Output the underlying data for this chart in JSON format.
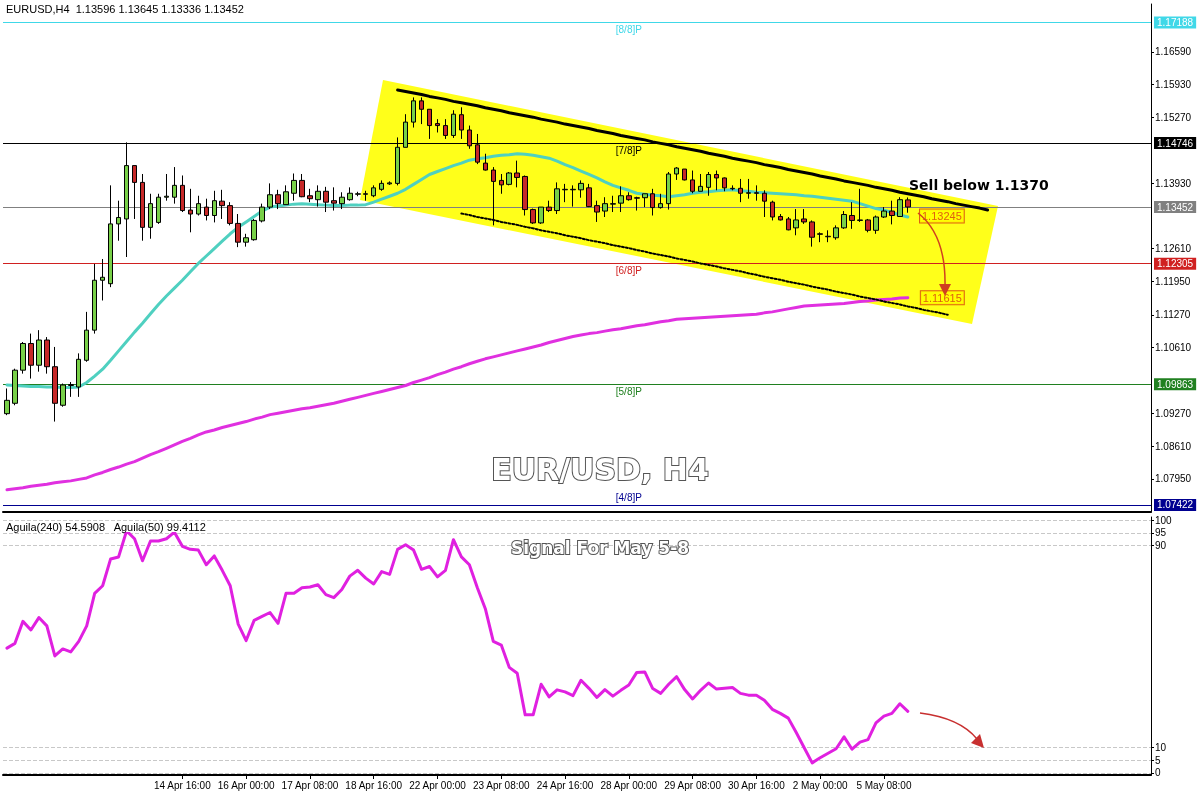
{
  "chart_data": [
    {
      "type": "candlestick",
      "title": "EURUSD,H4  1.13596 1.13645 1.13336 1.13452",
      "categories": [
        null,
        null,
        null,
        null,
        null,
        null,
        null,
        null,
        null,
        null,
        null,
        null,
        null,
        null,
        null,
        null,
        null,
        null,
        null,
        null,
        null,
        null,
        null,
        null,
        null,
        null,
        null,
        null,
        null,
        null,
        null,
        null,
        null,
        null,
        null,
        null,
        null,
        null,
        null,
        null,
        null,
        null,
        null,
        null,
        null,
        null,
        null,
        null,
        null,
        null,
        null,
        null,
        null,
        null,
        null,
        null,
        null,
        null,
        null,
        null,
        null,
        null,
        null,
        null,
        null,
        null,
        null,
        null,
        null,
        null,
        null,
        null,
        null,
        null,
        null,
        null,
        null,
        null,
        null,
        null,
        null,
        null,
        null,
        null,
        null,
        null,
        null,
        null,
        null,
        null,
        null,
        null,
        null,
        null,
        null,
        null,
        null,
        null,
        null,
        null,
        null,
        null,
        null,
        null,
        null,
        null,
        null,
        null,
        null,
        null,
        null,
        null,
        null,
        null,
        null,
        null,
        null,
        null,
        null,
        null,
        null,
        null,
        null,
        null,
        null,
        null,
        null,
        null,
        null,
        null,
        null,
        null,
        null,
        null,
        null,
        null,
        null,
        null,
        null,
        null,
        null,
        null,
        null,
        null
      ],
      "ylim": [
        1.0728,
        1.1756
      ],
      "yticks": [
        {
          "value": 1.1659,
          "label": "1.16590"
        },
        {
          "value": 1.1593,
          "label": "1.15930"
        },
        {
          "value": 1.1527,
          "label": "1.15270"
        },
        {
          "value": 1.1393,
          "label": "1.13930"
        },
        {
          "value": 1.1261,
          "label": "1.12610"
        },
        {
          "value": 1.1195,
          "label": "1.11950"
        },
        {
          "value": 1.1127,
          "label": "1.11270"
        },
        {
          "value": 1.1061,
          "label": "1.10610"
        },
        {
          "value": 1.0927,
          "label": "1.09270"
        },
        {
          "value": 1.0861,
          "label": "1.08610"
        },
        {
          "value": 1.0795,
          "label": "1.07950"
        }
      ],
      "tick_labels": "y",
      "marker": "none",
      "series": [
        {
          "ohlc": [
            [
              1.0927,
              1.0978,
              1.0924,
              1.0954
            ],
            [
              1.0948,
              1.1018,
              1.0944,
              1.1015
            ],
            [
              1.1015,
              1.1072,
              1.1008,
              1.1069
            ],
            [
              1.1069,
              1.1089,
              1.0998,
              1.1025
            ],
            [
              1.1025,
              1.1096,
              1.1012,
              1.1076
            ],
            [
              1.1076,
              1.1082,
              1.1008,
              1.1022
            ],
            [
              1.1022,
              1.1062,
              1.0911,
              1.0948
            ],
            [
              1.0944,
              1.0988,
              1.0941,
              1.0985
            ],
            [
              1.0984,
              1.0991,
              1.0961,
              1.0986
            ],
            [
              1.0981,
              1.1049,
              1.0961,
              1.1037
            ],
            [
              1.1035,
              1.1133,
              1.1032,
              1.1096
            ],
            [
              1.1096,
              1.123,
              1.1089,
              1.1197
            ],
            [
              1.1197,
              1.124,
              1.1156,
              1.1203
            ],
            [
              1.119,
              1.1389,
              1.1183,
              1.1311
            ],
            [
              1.1311,
              1.1358,
              1.1277,
              1.1324
            ],
            [
              1.1321,
              1.1476,
              1.1244,
              1.1429
            ],
            [
              1.1429,
              1.1429,
              1.1321,
              1.1395
            ],
            [
              1.1395,
              1.1412,
              1.1277,
              1.1304
            ],
            [
              1.1304,
              1.1372,
              1.1281,
              1.1352
            ],
            [
              1.1314,
              1.1372,
              1.1311,
              1.1365
            ],
            [
              1.1365,
              1.1412,
              1.1358,
              1.1367
            ],
            [
              1.1365,
              1.1426,
              1.1352,
              1.1389
            ],
            [
              1.1389,
              1.1409,
              1.1335,
              1.1338
            ],
            [
              1.1339,
              1.1382,
              1.1294,
              1.1331
            ],
            [
              1.1331,
              1.1368,
              1.1328,
              1.1352
            ],
            [
              1.1345,
              1.1362,
              1.1318,
              1.1328
            ],
            [
              1.1328,
              1.1378,
              1.1314,
              1.1358
            ],
            [
              1.1357,
              1.138,
              1.1321,
              1.1348
            ],
            [
              1.1348,
              1.1355,
              1.1308,
              1.1312
            ],
            [
              1.1312,
              1.1331,
              1.1264,
              1.1274
            ],
            [
              1.1274,
              1.1291,
              1.1265,
              1.1283
            ],
            [
              1.1279,
              1.1321,
              1.1277,
              1.1318
            ],
            [
              1.1317,
              1.1352,
              1.1314,
              1.1345
            ],
            [
              1.1345,
              1.1393,
              1.1341,
              1.137
            ],
            [
              1.137,
              1.138,
              1.1341,
              1.1352
            ],
            [
              1.135,
              1.1389,
              1.135,
              1.1376
            ],
            [
              1.1373,
              1.1413,
              1.1358,
              1.1399
            ],
            [
              1.1399,
              1.1412,
              1.1365,
              1.1366
            ],
            [
              1.1368,
              1.1382,
              1.1355,
              1.1362
            ],
            [
              1.136,
              1.1389,
              1.1346,
              1.1377
            ],
            [
              1.1377,
              1.1386,
              1.1335,
              1.1355
            ],
            [
              1.1358,
              1.1385,
              1.1338,
              1.1353
            ],
            [
              1.1352,
              1.1375,
              1.1341,
              1.1365
            ],
            [
              1.136,
              1.1385,
              1.1358,
              1.1373
            ],
            [
              1.1371,
              1.1376,
              1.1367,
              1.1372
            ],
            [
              1.1371,
              1.1378,
              1.1358,
              1.1372
            ],
            [
              1.1368,
              1.1389,
              1.1365,
              1.1384
            ],
            [
              1.1381,
              1.1399,
              1.1378,
              1.1393
            ],
            [
              1.1392,
              1.1397,
              1.139,
              1.1394
            ],
            [
              1.1393,
              1.1486,
              1.1389,
              1.1466
            ],
            [
              1.1466,
              1.1533,
              1.1466,
              1.1517
            ],
            [
              1.1517,
              1.1567,
              1.1506,
              1.156
            ],
            [
              1.156,
              1.1567,
              1.1513,
              1.1543
            ],
            [
              1.1543,
              1.1543,
              1.1483,
              1.151
            ],
            [
              1.1514,
              1.1523,
              1.1496,
              1.151
            ],
            [
              1.151,
              1.1523,
              1.1483,
              1.149
            ],
            [
              1.149,
              1.1541,
              1.1485,
              1.1533
            ],
            [
              1.1532,
              1.1547,
              1.1483,
              1.1501
            ],
            [
              1.1501,
              1.151,
              1.1463,
              1.1469
            ],
            [
              1.1471,
              1.1493,
              1.1432,
              1.1436
            ],
            [
              1.1434,
              1.1453,
              1.1419,
              1.142
            ],
            [
              1.142,
              1.1426,
              1.1308,
              1.1397
            ],
            [
              1.1399,
              1.1412,
              1.1372,
              1.139
            ],
            [
              1.1391,
              1.1416,
              1.1389,
              1.1414
            ],
            [
              1.1414,
              1.1439,
              1.1385,
              1.1405
            ],
            [
              1.1407,
              1.1409,
              1.1328,
              1.134
            ],
            [
              1.134,
              1.1342,
              1.1311,
              1.1313
            ],
            [
              1.1313,
              1.1345,
              1.1311,
              1.1345
            ],
            [
              1.1345,
              1.1358,
              1.1335,
              1.1338
            ],
            [
              1.1338,
              1.1395,
              1.1331,
              1.1382
            ],
            [
              1.1381,
              1.1392,
              1.1355,
              1.138
            ],
            [
              1.138,
              1.1389,
              1.1346,
              1.1381
            ],
            [
              1.138,
              1.1399,
              1.1364,
              1.1393
            ],
            [
              1.1384,
              1.1392,
              1.1345,
              1.1346
            ],
            [
              1.1348,
              1.1358,
              1.1315,
              1.1335
            ],
            [
              1.1337,
              1.1365,
              1.1325,
              1.1352
            ],
            [
              1.1351,
              1.1368,
              1.1335,
              1.1352
            ],
            [
              1.1353,
              1.1387,
              1.1335,
              1.1368
            ],
            [
              1.1368,
              1.1375,
              1.1358,
              1.136
            ],
            [
              1.1364,
              1.1366,
              1.1338,
              1.1363
            ],
            [
              1.1364,
              1.1372,
              1.1345,
              1.1372
            ],
            [
              1.1372,
              1.1382,
              1.1328,
              1.1344
            ],
            [
              1.1344,
              1.1372,
              1.1342,
              1.1352
            ],
            [
              1.1352,
              1.1416,
              1.134,
              1.1412
            ],
            [
              1.1412,
              1.1426,
              1.14,
              1.1424
            ],
            [
              1.1422,
              1.1422,
              1.1399,
              1.14
            ],
            [
              1.14,
              1.1419,
              1.1373,
              1.1377
            ],
            [
              1.1377,
              1.1412,
              1.1377,
              1.1387
            ],
            [
              1.1385,
              1.1416,
              1.1368,
              1.1411
            ],
            [
              1.1411,
              1.1419,
              1.1379,
              1.1404
            ],
            [
              1.1404,
              1.1405,
              1.1377,
              1.1384
            ],
            [
              1.1382,
              1.1389,
              1.1379,
              1.1383
            ],
            [
              1.1383,
              1.1402,
              1.1355,
              1.1373
            ],
            [
              1.1373,
              1.1402,
              1.1362,
              1.1374
            ],
            [
              1.1374,
              1.1389,
              1.1358,
              1.1373
            ],
            [
              1.1373,
              1.1379,
              1.1325,
              1.1357
            ],
            [
              1.1355,
              1.1358,
              1.1318,
              1.1325
            ],
            [
              1.1326,
              1.1331,
              1.1318,
              1.1319
            ],
            [
              1.1321,
              1.1325,
              1.1298,
              1.1299
            ],
            [
              1.1303,
              1.1341,
              1.1288,
              1.1319
            ],
            [
              1.1321,
              1.1341,
              1.1311,
              1.1315
            ],
            [
              1.1315,
              1.1318,
              1.1265,
              1.1284
            ],
            [
              1.1291,
              1.1294,
              1.1274,
              1.129
            ],
            [
              1.1285,
              1.1298,
              1.1274,
              1.1286
            ],
            [
              1.1283,
              1.1308,
              1.1279,
              1.1303
            ],
            [
              1.1303,
              1.1337,
              1.1301,
              1.133
            ],
            [
              1.1328,
              1.1355,
              1.1301,
              1.1318
            ],
            [
              1.1318,
              1.1382,
              1.1315,
              1.1319
            ],
            [
              1.1319,
              1.1321,
              1.1294,
              1.1298
            ],
            [
              1.1298,
              1.1328,
              1.1291,
              1.1325
            ],
            [
              1.1325,
              1.1345,
              1.1323,
              1.1337
            ],
            [
              1.1337,
              1.1358,
              1.131,
              1.1328
            ],
            [
              1.1326,
              1.1365,
              1.1325,
              1.136
            ],
            [
              1.13596,
              1.13645,
              1.13336,
              1.13452
            ],
            null,
            null,
            null,
            null,
            null,
            null,
            null,
            null,
            null,
            null,
            null,
            null,
            null,
            null,
            null,
            null,
            null,
            null,
            null,
            null,
            null,
            null,
            null,
            null,
            null,
            null,
            null,
            null,
            null,
            null
          ],
          "colors": [
            "#78d048",
            "#78d048",
            "#78d048",
            "#c62828",
            "#78d048",
            "#c62828",
            "#c62828",
            "#78d048",
            "#78d048",
            "#78d048",
            "#78d048",
            "#78d048",
            "#78d048",
            "#78d048",
            "#78d048",
            "#78d048",
            "#c62828",
            "#c62828",
            "#78d048",
            "#78d048",
            "#78d048",
            "#78d048",
            "#c62828",
            "#c62828",
            "#78d048",
            "#c62828",
            "#78d048",
            "#c62828",
            "#c62828",
            "#c62828",
            "#78d048",
            "#78d048",
            "#78d048",
            "#78d048",
            "#c62828",
            "#78d048",
            "#78d048",
            "#c62828",
            "#c62828",
            "#78d048",
            "#c62828",
            "#c62828",
            "#78d048",
            "#78d048",
            "#78d048",
            "#78d048",
            "#78d048",
            "#78d048",
            "#78d048",
            "#78d048",
            "#78d048",
            "#78d048",
            "#c62828",
            "#c62828",
            "#c62828",
            "#c62828",
            "#78d048",
            "#c62828",
            "#c62828",
            "#c62828",
            "#c62828",
            "#c62828",
            "#c62828",
            "#78d048",
            "#c62828",
            "#c62828",
            "#c62828",
            "#78d048",
            "#c62828",
            "#78d048",
            "#c62828",
            "#78d048",
            "#78d048",
            "#c62828",
            "#c62828",
            "#78d048",
            "#78d048",
            "#78d048",
            "#c62828",
            "#c62828",
            "#78d048",
            "#c62828",
            "#78d048",
            "#78d048",
            "#78d048",
            "#c62828",
            "#c62828",
            "#78d048",
            "#78d048",
            "#c62828",
            "#c62828",
            "#78d048",
            "#c62828",
            "#78d048",
            "#c62828",
            "#c62828",
            "#c62828",
            "#c62828",
            "#c62828",
            "#78d048",
            "#c62828",
            "#c62828",
            "#c62828",
            "#78d048",
            "#78d048",
            "#78d048",
            "#c62828",
            "#78d048",
            "#c62828",
            "#78d048",
            "#78d048",
            "#c62828",
            "#78d048",
            "#c62828",
            null,
            null,
            null,
            null,
            null,
            null,
            null,
            null,
            null,
            null,
            null,
            null,
            null,
            null,
            null,
            null,
            null,
            null,
            null,
            null,
            null,
            null,
            null,
            null,
            null,
            null,
            null,
            null,
            null,
            null
          ]
        },
        {
          "type": "line",
          "color": "#4fd0c0",
          "values": [
            1.0985,
            1.0984,
            1.0983,
            1.0982,
            1.0982,
            1.0981,
            1.0981,
            1.098,
            1.098,
            1.0981,
            1.099,
            1.1003,
            1.1017,
            1.1035,
            1.1054,
            1.1073,
            1.1092,
            1.111,
            1.1129,
            1.1148,
            1.1165,
            1.1181,
            1.1197,
            1.1214,
            1.1231,
            1.1246,
            1.1261,
            1.1276,
            1.1291,
            1.1304,
            1.1315,
            1.1326,
            1.1337,
            1.1345,
            1.1347,
            1.1349,
            1.1351,
            1.1352,
            1.1351,
            1.135,
            1.1349,
            1.1348,
            1.1348,
            1.1349,
            1.1349,
            1.135,
            1.1355,
            1.1361,
            1.1367,
            1.1373,
            1.1381,
            1.1391,
            1.1401,
            1.1411,
            1.1417,
            1.1423,
            1.1429,
            1.1434,
            1.144,
            1.1443,
            1.1445,
            1.1448,
            1.145,
            1.1451,
            1.1453,
            1.1452,
            1.145,
            1.1447,
            1.1444,
            1.1438,
            1.1431,
            1.1425,
            1.1418,
            1.1411,
            1.1404,
            1.1396,
            1.1389,
            1.1384,
            1.1379,
            1.1373,
            1.1371,
            1.1369,
            1.1368,
            1.1366,
            1.1368,
            1.137,
            1.1373,
            1.1375,
            1.1376,
            1.1378,
            1.1379,
            1.138,
            1.1378,
            1.1377,
            1.1375,
            1.1374,
            1.1373,
            1.1372,
            1.1371,
            1.137,
            1.1368,
            1.1367,
            1.1365,
            1.1363,
            1.1361,
            1.1359,
            1.1357,
            1.1352,
            1.1347,
            1.1342,
            1.1339,
            1.1334,
            1.1329,
            1.1325,
            null,
            null,
            null,
            null,
            null,
            null,
            null,
            null,
            null,
            null,
            null,
            null,
            null,
            null,
            null,
            null,
            null,
            null,
            null,
            null,
            null,
            null,
            null,
            null,
            null,
            null,
            null,
            null,
            null,
            null
          ]
        },
        {
          "type": "line",
          "color": "#e030e0",
          "values": [
            1.0773,
            1.0775,
            1.0777,
            1.078,
            1.0782,
            1.0784,
            1.0787,
            1.0789,
            1.0791,
            1.0794,
            1.0797,
            1.0803,
            1.0808,
            1.0814,
            1.0819,
            1.0825,
            1.083,
            1.0837,
            1.0844,
            1.085,
            1.0857,
            1.0864,
            1.0871,
            1.0877,
            1.0884,
            1.089,
            1.0894,
            1.0899,
            1.0903,
            1.0907,
            1.0911,
            1.0916,
            1.092,
            1.0925,
            1.0928,
            1.0931,
            1.0934,
            1.0937,
            1.0939,
            1.0942,
            1.0945,
            1.0948,
            1.0952,
            1.0956,
            1.096,
            1.0964,
            1.0968,
            1.0972,
            1.0976,
            1.098,
            1.0984,
            1.099,
            1.0995,
            1.1,
            1.1006,
            1.1011,
            1.1017,
            1.1022,
            1.1028,
            1.1033,
            1.1038,
            1.1042,
            1.1046,
            1.105,
            1.1054,
            1.1058,
            1.1062,
            1.1066,
            1.1071,
            1.1075,
            1.1079,
            1.1083,
            1.1086,
            1.1089,
            1.1091,
            1.1094,
            1.1097,
            1.1099,
            1.1102,
            1.1105,
            1.1107,
            1.111,
            1.1113,
            1.1115,
            1.1118,
            1.1119,
            1.112,
            1.1121,
            1.1122,
            1.1123,
            1.1124,
            1.1125,
            1.1126,
            1.1127,
            1.1128,
            1.1131,
            1.1133,
            1.1136,
            1.1139,
            1.1142,
            1.1145,
            1.1146,
            1.1147,
            1.1148,
            1.1149,
            1.115,
            1.1152,
            1.1154,
            1.1155,
            1.1157,
            1.1158,
            1.1159,
            1.1161,
            1.11615,
            null,
            null,
            null,
            null,
            null,
            null,
            null,
            null,
            null,
            null,
            null,
            null,
            null,
            null,
            null,
            null,
            null,
            null,
            null,
            null,
            null,
            null,
            null,
            null,
            null,
            null,
            null,
            null,
            null,
            null
          ]
        },
        {
          "type": "line",
          "color": "#000000",
          "line_style": "solid",
          "values": [
            null,
            null,
            null,
            null,
            null,
            null,
            null,
            null,
            null,
            null,
            null,
            null,
            null,
            null,
            null,
            null,
            null,
            null,
            null,
            null,
            null,
            null,
            null,
            null,
            null,
            null,
            null,
            null,
            null,
            null,
            null,
            null,
            null,
            null,
            null,
            null,
            null,
            null,
            null,
            null,
            null,
            null,
            null,
            null,
            null,
            null,
            null,
            null,
            null,
            1.1582,
            1.1579,
            1.1576,
            1.1573,
            1.1569,
            1.1566,
            1.1563,
            1.1559,
            1.1556,
            1.1553,
            1.155,
            1.1546,
            1.1543,
            1.154,
            1.1536,
            1.1533,
            1.153,
            1.1527,
            1.1523,
            1.152,
            1.1517,
            1.1513,
            1.151,
            1.1507,
            1.1504,
            1.15,
            1.1497,
            1.1494,
            1.149,
            1.1487,
            1.1484,
            1.1481,
            1.1477,
            1.1474,
            1.1471,
            1.1467,
            1.1464,
            1.1461,
            1.1458,
            1.1454,
            1.1451,
            1.1448,
            1.1444,
            1.1441,
            1.1438,
            1.1435,
            1.1431,
            1.1428,
            1.1425,
            1.1421,
            1.1418,
            1.1415,
            1.1412,
            1.1408,
            1.1405,
            1.1402,
            1.1398,
            1.1395,
            1.1392,
            1.1389,
            1.1385,
            1.1382,
            1.1379,
            1.1375,
            1.1372,
            1.1369,
            1.1366,
            1.1362,
            1.1359,
            1.1356,
            1.1352,
            1.1349,
            1.1346,
            1.1343,
            1.1339,
            null,
            null,
            null,
            null,
            null,
            null,
            null,
            null,
            null,
            null,
            null,
            null,
            null,
            null,
            null,
            null,
            null,
            null,
            null,
            null
          ]
        },
        {
          "type": "line",
          "color": "#000000",
          "line_style": "dotted",
          "values": [
            null,
            null,
            null,
            null,
            null,
            null,
            null,
            null,
            null,
            null,
            null,
            null,
            null,
            null,
            null,
            null,
            null,
            null,
            null,
            null,
            null,
            null,
            null,
            null,
            null,
            null,
            null,
            null,
            null,
            null,
            null,
            null,
            null,
            null,
            null,
            null,
            null,
            null,
            null,
            null,
            null,
            null,
            null,
            null,
            null,
            null,
            null,
            null,
            null,
            null,
            null,
            null,
            null,
            null,
            null,
            null,
            null,
            1.1332,
            1.1329,
            1.1325,
            1.1322,
            1.1319,
            1.1315,
            1.1312,
            1.1309,
            1.1305,
            1.1302,
            1.1298,
            1.1295,
            1.1292,
            1.1288,
            1.1285,
            1.1282,
            1.1278,
            1.1275,
            1.1272,
            1.1268,
            1.1265,
            1.1262,
            1.1258,
            1.1255,
            1.1251,
            1.1248,
            1.1245,
            1.1241,
            1.1238,
            1.1235,
            1.1231,
            1.1228,
            1.1225,
            1.1221,
            1.1218,
            1.1215,
            1.1211,
            1.1208,
            1.1204,
            1.1201,
            1.1198,
            1.1194,
            1.1191,
            1.1188,
            1.1184,
            1.1181,
            1.1178,
            1.1174,
            1.1171,
            1.1168,
            1.1164,
            1.1161,
            1.1158,
            1.1154,
            1.1151,
            1.1148,
            1.1144,
            1.1141,
            1.1137,
            1.1134,
            1.1131,
            1.1127,
            null,
            null,
            null,
            null,
            null,
            null,
            null,
            null,
            null,
            null,
            null,
            null,
            null,
            null,
            null,
            null,
            null,
            null,
            null,
            null,
            null,
            null,
            null,
            null,
            null
          ]
        }
      ],
      "ref_lines": [
        {
          "axis": "y",
          "value": 1.17188,
          "label": "1.17188",
          "color": "#40d8e8"
        },
        {
          "axis": "y",
          "value": 1.14746,
          "label": "1.14746",
          "color": "#000000"
        },
        {
          "axis": "y",
          "value": 1.13452,
          "label": "1.13452",
          "color": "#808080"
        },
        {
          "axis": "y",
          "value": 1.12305,
          "label": "1.12305",
          "color": "#d02020"
        },
        {
          "axis": "y",
          "value": 1.09863,
          "label": "1.09863",
          "color": "#208020"
        },
        {
          "axis": "y",
          "value": 1.07422,
          "label": "1.07422",
          "color": "#000090"
        }
      ],
      "annotations": [
        "EUR/USD, H4",
        "Sell below 1.1370",
        "1.13245",
        {
          "text": "1.11615",
          "y": 1.11615
        },
        {
          "text": "[8/8]P",
          "y": 1.17188
        },
        {
          "text": "[7/8]P",
          "y": 1.14746
        },
        {
          "text": "[6/8]P",
          "y": 1.12305
        },
        {
          "text": "[5/8]P",
          "y": 1.09863
        },
        {
          "text": "[4/8]P",
          "y": 1.07422
        }
      ]
    },
    {
      "type": "line",
      "title": "Aguila(240) 54.5908   Aguila(50) 99.4112",
      "color": "#e020e0",
      "marker": "none",
      "grid": "y",
      "categories": [
        null,
        null,
        null,
        null,
        null,
        null,
        null,
        null,
        null,
        null,
        null,
        null,
        null,
        null,
        null,
        null,
        null,
        null,
        null,
        null,
        null,
        null,
        "14 Apr 16:00",
        null,
        null,
        null,
        null,
        null,
        null,
        null,
        "16 Apr 00:00",
        null,
        null,
        null,
        null,
        null,
        null,
        null,
        "17 Apr 08:00",
        null,
        null,
        null,
        null,
        null,
        null,
        null,
        "18 Apr 16:00",
        null,
        null,
        null,
        null,
        null,
        null,
        null,
        "22 Apr 00:00",
        null,
        null,
        null,
        null,
        null,
        null,
        null,
        "23 Apr 08:00",
        null,
        null,
        null,
        null,
        null,
        null,
        null,
        "24 Apr 16:00",
        null,
        null,
        null,
        null,
        null,
        null,
        null,
        "28 Apr 00:00",
        null,
        null,
        null,
        null,
        null,
        null,
        null,
        "29 Apr 08:00",
        null,
        null,
        null,
        null,
        null,
        null,
        null,
        "30 Apr 16:00",
        null,
        null,
        null,
        null,
        null,
        null,
        null,
        "2 May 00:00",
        null,
        null,
        null,
        null,
        null,
        null,
        null,
        "5 May 08:00",
        null,
        null,
        null,
        null,
        null,
        null,
        null,
        null,
        null,
        null,
        null,
        null,
        null,
        null,
        null,
        null,
        null,
        null,
        null,
        null,
        null,
        null,
        null,
        null,
        null,
        null,
        null,
        null,
        null,
        null,
        null,
        null,
        null
      ],
      "ylim": [
        -0.8,
        101.3
      ],
      "yticks": [
        0,
        5,
        10,
        90,
        95,
        100
      ],
      "values": [
        49.4,
        51.3,
        60,
        56.6,
        61.5,
        58.2,
        46.3,
        49.1,
        47.9,
        52.1,
        58.2,
        71.1,
        74.1,
        84.7,
        85.5,
        95.8,
        92.7,
        84,
        91.8,
        91.8,
        92.7,
        95.3,
        89.7,
        88.5,
        88.2,
        82.4,
        85.9,
        80.2,
        74.1,
        58.9,
        52.4,
        60.4,
        62,
        63.5,
        59.2,
        71.1,
        71.1,
        73.3,
        73.6,
        74.5,
        70.6,
        69.4,
        72.6,
        77.9,
        80.2,
        77.1,
        74.8,
        79.7,
        78.6,
        88.5,
        90.3,
        88.2,
        80.6,
        81.7,
        77.6,
        80.2,
        92.3,
        85.5,
        82.4,
        73.3,
        65,
        52.1,
        50.6,
        41.8,
        39.5,
        23,
        23,
        35.1,
        30.1,
        32.9,
        32.1,
        30.6,
        36.7,
        33.5,
        29.9,
        33,
        30.4,
        32.7,
        34.8,
        39.8,
        40,
        33.4,
        31.5,
        35.1,
        38.1,
        33,
        29.3,
        32.7,
        35.6,
        33.2,
        33.5,
        33.8,
        31.5,
        30.8,
        30.8,
        28.8,
        25.2,
        23.6,
        21.7,
        16,
        10,
        4,
        6,
        7.8,
        9.6,
        14.3,
        9.4,
        12.2,
        13.2,
        19.8,
        22.5,
        23.6,
        27.4,
        24.4,
        null,
        null,
        null,
        null,
        null,
        null,
        null,
        null,
        null,
        null,
        null,
        null,
        null,
        null,
        null,
        null,
        null,
        null,
        null,
        null,
        null,
        null,
        null,
        null,
        null,
        null,
        null,
        null,
        null,
        null
      ],
      "annotations": [
        "Signal For May 5-8"
      ]
    }
  ]
}
